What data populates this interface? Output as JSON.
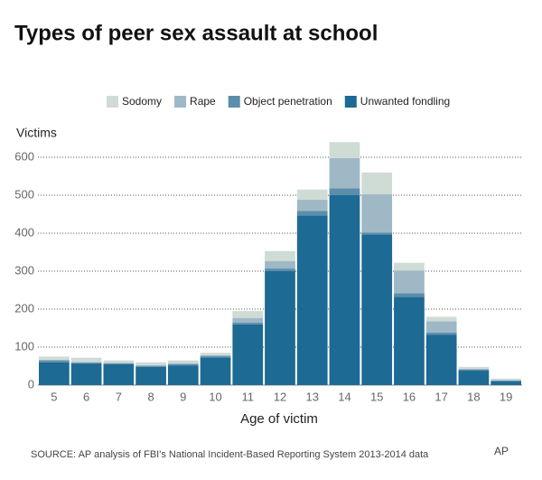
{
  "chart_data": {
    "type": "stacked-bar",
    "title": "Types of peer sex assault at school",
    "y_label": "Victims",
    "x_label": "Age of victim",
    "source": "SOURCE: AP analysis of FBI's National Incident-Based Reporting System 2013-2014 data",
    "credit": "AP",
    "categories": [
      "5",
      "6",
      "7",
      "8",
      "9",
      "10",
      "11",
      "12",
      "13",
      "14",
      "15",
      "16",
      "17",
      "18",
      "19"
    ],
    "series": [
      {
        "name": "Sodomy",
        "color": "#cfdbd5",
        "values": [
          8,
          11,
          6,
          7,
          7,
          6,
          18,
          26,
          27,
          42,
          57,
          20,
          12,
          5,
          4
        ]
      },
      {
        "name": "Rape",
        "color": "#9fb8c5",
        "values": [
          2,
          2,
          2,
          3,
          3,
          3,
          12,
          20,
          29,
          80,
          101,
          60,
          30,
          2,
          1
        ]
      },
      {
        "name": "Object penetration",
        "color": "#5c8dab",
        "values": [
          5,
          2,
          2,
          2,
          3,
          3,
          5,
          7,
          12,
          18,
          5,
          10,
          5,
          3,
          2
        ]
      },
      {
        "name": "Unwanted fondling",
        "color": "#1d6a94",
        "values": [
          60,
          57,
          55,
          48,
          52,
          73,
          160,
          300,
          447,
          500,
          397,
          232,
          133,
          38,
          10
        ]
      }
    ],
    "ylim": [
      0,
      600
    ],
    "yticks": [
      0,
      100,
      200,
      300,
      400,
      500,
      600
    ],
    "grid": true
  }
}
